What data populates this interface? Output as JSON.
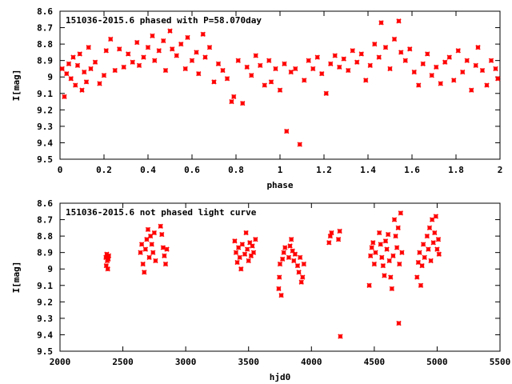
{
  "chart_data": [
    {
      "type": "scatter",
      "title": "151036-2015.6 phased with P=58.070day",
      "xlabel": "phase",
      "ylabel": "I[mag]",
      "xlim": [
        0,
        2
      ],
      "ylim": [
        8.6,
        9.5
      ],
      "y_inverted": true,
      "x_ticks": [
        "0",
        "0.2",
        "0.4",
        "0.6",
        "0.8",
        "1",
        "1.2",
        "1.4",
        "1.6",
        "1.8",
        "2"
      ],
      "y_ticks": [
        "8.6",
        "8.7",
        "8.8",
        "8.9",
        "9",
        "9.1",
        "9.2",
        "9.3",
        "9.4",
        "9.5"
      ],
      "grid": false,
      "point_color": "#ff0000",
      "series": [
        {
          "points": [
            [
              0.01,
              8.95
            ],
            [
              0.02,
              9.12
            ],
            [
              0.03,
              8.98
            ],
            [
              0.04,
              8.92
            ],
            [
              0.05,
              9.01
            ],
            [
              0.06,
              8.88
            ],
            [
              0.07,
              9.05
            ],
            [
              0.08,
              8.93
            ],
            [
              0.09,
              8.86
            ],
            [
              0.1,
              9.08
            ],
            [
              0.11,
              8.97
            ],
            [
              0.12,
              9.03
            ],
            [
              0.13,
              8.82
            ],
            [
              0.14,
              8.95
            ],
            [
              0.16,
              8.91
            ],
            [
              0.18,
              9.04
            ],
            [
              0.2,
              8.99
            ],
            [
              0.21,
              8.84
            ],
            [
              0.23,
              8.77
            ],
            [
              0.25,
              8.96
            ],
            [
              0.27,
              8.83
            ],
            [
              0.29,
              8.94
            ],
            [
              0.31,
              8.86
            ],
            [
              0.33,
              8.91
            ],
            [
              0.35,
              8.79
            ],
            [
              0.36,
              8.93
            ],
            [
              0.38,
              8.88
            ],
            [
              0.4,
              8.82
            ],
            [
              0.42,
              8.75
            ],
            [
              0.43,
              8.9
            ],
            [
              0.45,
              8.84
            ],
            [
              0.47,
              8.78
            ],
            [
              0.48,
              8.96
            ],
            [
              0.5,
              8.72
            ],
            [
              0.51,
              8.83
            ],
            [
              0.53,
              8.87
            ],
            [
              0.55,
              8.8
            ],
            [
              0.57,
              8.95
            ],
            [
              0.58,
              8.76
            ],
            [
              0.6,
              8.9
            ],
            [
              0.62,
              8.85
            ],
            [
              0.63,
              8.98
            ],
            [
              0.65,
              8.74
            ],
            [
              0.66,
              8.88
            ],
            [
              0.68,
              8.82
            ],
            [
              0.7,
              9.03
            ],
            [
              0.72,
              8.92
            ],
            [
              0.74,
              8.96
            ],
            [
              0.76,
              9.01
            ],
            [
              0.78,
              9.15
            ],
            [
              0.79,
              9.12
            ],
            [
              0.81,
              8.9
            ],
            [
              0.83,
              9.16
            ],
            [
              0.85,
              8.94
            ],
            [
              0.87,
              8.99
            ],
            [
              0.89,
              8.87
            ],
            [
              0.91,
              8.93
            ],
            [
              0.93,
              9.05
            ],
            [
              0.95,
              8.9
            ],
            [
              0.96,
              9.03
            ],
            [
              0.98,
              8.95
            ],
            [
              1.0,
              9.08
            ],
            [
              1.02,
              8.92
            ],
            [
              1.03,
              9.33
            ],
            [
              1.05,
              8.97
            ],
            [
              1.07,
              8.95
            ],
            [
              1.09,
              9.41
            ],
            [
              1.11,
              9.02
            ],
            [
              1.13,
              8.9
            ],
            [
              1.15,
              8.95
            ],
            [
              1.17,
              8.88
            ],
            [
              1.19,
              8.98
            ],
            [
              1.21,
              9.1
            ],
            [
              1.23,
              8.92
            ],
            [
              1.25,
              8.87
            ],
            [
              1.27,
              8.94
            ],
            [
              1.29,
              8.89
            ],
            [
              1.31,
              8.96
            ],
            [
              1.33,
              8.84
            ],
            [
              1.35,
              8.91
            ],
            [
              1.37,
              8.86
            ],
            [
              1.39,
              9.02
            ],
            [
              1.41,
              8.93
            ],
            [
              1.43,
              8.8
            ],
            [
              1.45,
              8.88
            ],
            [
              1.46,
              8.67
            ],
            [
              1.48,
              8.82
            ],
            [
              1.5,
              8.95
            ],
            [
              1.52,
              8.77
            ],
            [
              1.54,
              8.66
            ],
            [
              1.55,
              8.85
            ],
            [
              1.57,
              8.9
            ],
            [
              1.59,
              8.83
            ],
            [
              1.61,
              8.97
            ],
            [
              1.63,
              9.05
            ],
            [
              1.65,
              8.92
            ],
            [
              1.67,
              8.86
            ],
            [
              1.69,
              8.99
            ],
            [
              1.71,
              8.94
            ],
            [
              1.73,
              9.04
            ],
            [
              1.75,
              8.91
            ],
            [
              1.77,
              8.88
            ],
            [
              1.79,
              9.02
            ],
            [
              1.81,
              8.84
            ],
            [
              1.83,
              8.97
            ],
            [
              1.85,
              8.9
            ],
            [
              1.87,
              9.08
            ],
            [
              1.89,
              8.93
            ],
            [
              1.9,
              8.82
            ],
            [
              1.92,
              8.96
            ],
            [
              1.94,
              9.05
            ],
            [
              1.96,
              8.9
            ],
            [
              1.98,
              8.95
            ],
            [
              1.99,
              9.01
            ]
          ]
        }
      ]
    },
    {
      "type": "scatter",
      "title": "151036-2015.6 not phased light curve",
      "xlabel": "hjd0",
      "ylabel": "I[mag]",
      "xlim": [
        2000,
        5500
      ],
      "ylim": [
        8.6,
        9.5
      ],
      "y_inverted": true,
      "x_ticks": [
        "2000",
        "2500",
        "3000",
        "3500",
        "4000",
        "4500",
        "5000",
        "5500"
      ],
      "y_ticks": [
        "8.6",
        "8.7",
        "8.8",
        "8.9",
        "9",
        "9.1",
        "9.2",
        "9.3",
        "9.4",
        "9.5"
      ],
      "grid": false,
      "point_color": "#ff0000",
      "series": [
        {
          "points": [
            [
              2365,
              8.93
            ],
            [
              2368,
              8.98
            ],
            [
              2372,
              8.91
            ],
            [
              2376,
              8.95
            ],
            [
              2380,
              9.0
            ],
            [
              2384,
              8.94
            ],
            [
              2388,
              8.92
            ],
            [
              2640,
              8.9
            ],
            [
              2650,
              8.85
            ],
            [
              2660,
              8.97
            ],
            [
              2670,
              9.02
            ],
            [
              2680,
              8.88
            ],
            [
              2690,
              8.82
            ],
            [
              2700,
              8.76
            ],
            [
              2710,
              8.93
            ],
            [
              2720,
              8.8
            ],
            [
              2730,
              8.85
            ],
            [
              2740,
              8.9
            ],
            [
              2750,
              8.78
            ],
            [
              2760,
              8.95
            ],
            [
              2800,
              8.74
            ],
            [
              2810,
              8.79
            ],
            [
              2820,
              8.87
            ],
            [
              2830,
              8.92
            ],
            [
              2840,
              8.97
            ],
            [
              2850,
              8.88
            ],
            [
              3390,
              8.83
            ],
            [
              3400,
              8.9
            ],
            [
              3410,
              8.96
            ],
            [
              3420,
              8.87
            ],
            [
              3430,
              8.93
            ],
            [
              3440,
              9.0
            ],
            [
              3450,
              8.85
            ],
            [
              3470,
              8.91
            ],
            [
              3480,
              8.78
            ],
            [
              3490,
              8.88
            ],
            [
              3500,
              8.95
            ],
            [
              3510,
              8.84
            ],
            [
              3520,
              8.92
            ],
            [
              3530,
              8.86
            ],
            [
              3540,
              8.9
            ],
            [
              3555,
              8.82
            ],
            [
              3740,
              9.12
            ],
            [
              3745,
              9.05
            ],
            [
              3750,
              8.97
            ],
            [
              3760,
              9.16
            ],
            [
              3770,
              8.94
            ],
            [
              3780,
              8.9
            ],
            [
              3790,
              8.87
            ],
            [
              3820,
              8.93
            ],
            [
              3830,
              8.86
            ],
            [
              3840,
              8.82
            ],
            [
              3850,
              8.89
            ],
            [
              3860,
              8.95
            ],
            [
              3870,
              8.91
            ],
            [
              3890,
              8.98
            ],
            [
              3900,
              9.02
            ],
            [
              3910,
              8.93
            ],
            [
              3920,
              9.08
            ],
            [
              3930,
              9.05
            ],
            [
              3940,
              8.97
            ],
            [
              4140,
              8.84
            ],
            [
              4150,
              8.8
            ],
            [
              4160,
              8.78
            ],
            [
              4215,
              8.82
            ],
            [
              4225,
              8.77
            ],
            [
              4230,
              9.41
            ],
            [
              4460,
              9.1
            ],
            [
              4470,
              8.92
            ],
            [
              4480,
              8.87
            ],
            [
              4490,
              8.84
            ],
            [
              4500,
              8.97
            ],
            [
              4510,
              8.9
            ],
            [
              4540,
              8.78
            ],
            [
              4550,
              8.85
            ],
            [
              4560,
              8.93
            ],
            [
              4570,
              8.98
            ],
            [
              4580,
              9.04
            ],
            [
              4590,
              8.83
            ],
            [
              4600,
              8.88
            ],
            [
              4610,
              8.79
            ],
            [
              4620,
              8.95
            ],
            [
              4630,
              9.05
            ],
            [
              4640,
              9.12
            ],
            [
              4650,
              8.92
            ],
            [
              4660,
              8.7
            ],
            [
              4670,
              8.8
            ],
            [
              4680,
              8.87
            ],
            [
              4690,
              8.75
            ],
            [
              4695,
              9.33
            ],
            [
              4700,
              8.97
            ],
            [
              4710,
              8.66
            ],
            [
              4720,
              8.9
            ],
            [
              4840,
              9.05
            ],
            [
              4850,
              8.96
            ],
            [
              4860,
              8.9
            ],
            [
              4870,
              9.1
            ],
            [
              4880,
              8.98
            ],
            [
              4890,
              8.85
            ],
            [
              4900,
              8.93
            ],
            [
              4920,
              8.8
            ],
            [
              4930,
              8.88
            ],
            [
              4940,
              8.75
            ],
            [
              4950,
              8.95
            ],
            [
              4960,
              8.7
            ],
            [
              4970,
              8.84
            ],
            [
              4980,
              8.78
            ],
            [
              4990,
              8.68
            ],
            [
              5000,
              8.88
            ],
            [
              5010,
              8.82
            ],
            [
              5015,
              8.91
            ]
          ]
        }
      ]
    }
  ]
}
